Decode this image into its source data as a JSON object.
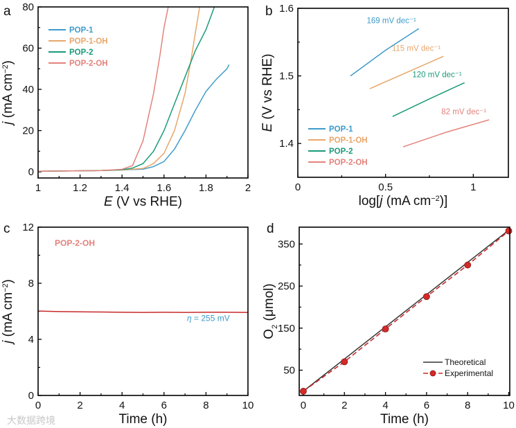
{
  "watermark": "大数据跨境",
  "chart_data": [
    {
      "panel": "a",
      "type": "line",
      "xlabel_italic": "E",
      "xlabel_rest": " (V vs RHE)",
      "ylabel_italic": "j",
      "ylabel_rest": " (mA cm",
      "ylabel_sup": "−2",
      "ylabel_end": ")",
      "xlim": [
        1,
        2
      ],
      "ylim": [
        -3,
        80
      ],
      "xticks": [
        1,
        1.2,
        1.4,
        1.6,
        1.8,
        2
      ],
      "xtick_labels": [
        "1",
        "1.2",
        "1.4",
        "1.6",
        "1.8",
        "2"
      ],
      "yticks": [
        0,
        20,
        40,
        60,
        80
      ],
      "ytick_labels": [
        "0",
        "20",
        "40",
        "60",
        "80"
      ],
      "legend": "top-left",
      "series": [
        {
          "name": "POP-1",
          "color": "#3d9bc9",
          "x": [
            1.0,
            1.3,
            1.4,
            1.5,
            1.55,
            1.6,
            1.65,
            1.7,
            1.75,
            1.8,
            1.85,
            1.9,
            1.91
          ],
          "y": [
            0.3,
            0.6,
            0.9,
            1.3,
            2.5,
            5,
            11,
            20,
            30,
            39,
            45,
            50,
            52
          ]
        },
        {
          "name": "POP-1-OH",
          "color": "#e8a66a",
          "x": [
            1.0,
            1.3,
            1.4,
            1.5,
            1.55,
            1.6,
            1.65,
            1.7,
            1.73,
            1.75,
            1.77
          ],
          "y": [
            0.3,
            0.6,
            0.9,
            1.6,
            4,
            9,
            20,
            38,
            55,
            68,
            80
          ]
        },
        {
          "name": "POP-2",
          "color": "#1a9a7a",
          "x": [
            1.0,
            1.3,
            1.4,
            1.45,
            1.5,
            1.55,
            1.6,
            1.65,
            1.7,
            1.75,
            1.8,
            1.84
          ],
          "y": [
            0.3,
            0.6,
            1,
            1.8,
            4,
            10,
            20,
            33,
            46,
            59,
            69,
            80
          ]
        },
        {
          "name": "POP-2-OH",
          "color": "#e3827b",
          "x": [
            1.0,
            1.3,
            1.4,
            1.45,
            1.5,
            1.55,
            1.58,
            1.6,
            1.62
          ],
          "y": [
            0.3,
            0.6,
            1.2,
            3,
            15,
            38,
            56,
            70,
            80
          ]
        }
      ]
    },
    {
      "panel": "b",
      "type": "line",
      "xlabel_pre": "log[",
      "xlabel_italic": "j",
      "xlabel_rest": " (mA cm",
      "xlabel_sup": "−2",
      "xlabel_end": ")]",
      "ylabel_italic": "E",
      "ylabel_rest": " (V vs RHE)",
      "xlim": [
        0,
        1.2
      ],
      "ylim": [
        1.35,
        1.6
      ],
      "xticks": [
        0,
        0.5,
        1
      ],
      "xtick_labels": [
        "0",
        "0.5",
        "1"
      ],
      "yticks": [
        1.4,
        1.5,
        1.6
      ],
      "ytick_labels": [
        "1.4",
        "1.5",
        "1.6"
      ],
      "legend": "bottom-left",
      "series": [
        {
          "name": "POP-1",
          "color": "#3d9bc9",
          "x": [
            0.3,
            0.5,
            0.69
          ],
          "y": [
            1.5,
            1.538,
            1.57
          ],
          "annotation": "169 mV dec⁻¹"
        },
        {
          "name": "POP-1-OH",
          "color": "#e8a66a",
          "x": [
            0.41,
            0.62,
            0.83
          ],
          "y": [
            1.481,
            1.505,
            1.529
          ],
          "annotation": "115 mV dec⁻¹"
        },
        {
          "name": "POP-2",
          "color": "#1a9a7a",
          "x": [
            0.54,
            0.75,
            0.95
          ],
          "y": [
            1.44,
            1.466,
            1.49
          ],
          "annotation": "120 mV dec⁻¹"
        },
        {
          "name": "POP-2-OH",
          "color": "#e3827b",
          "x": [
            0.6,
            0.85,
            1.09
          ],
          "y": [
            1.395,
            1.417,
            1.435
          ],
          "annotation": "82 mV dec⁻¹"
        }
      ]
    },
    {
      "panel": "c",
      "type": "line",
      "xlabel": "Time (h)",
      "ylabel_italic": "j",
      "ylabel_rest": " (mA cm",
      "ylabel_sup": "−2",
      "ylabel_end": ")",
      "xlim": [
        0,
        10
      ],
      "ylim": [
        0,
        12
      ],
      "xticks": [
        0,
        2,
        4,
        6,
        8,
        10
      ],
      "xtick_labels": [
        "0",
        "2",
        "4",
        "6",
        "8",
        "10"
      ],
      "yticks": [
        0,
        4,
        8,
        12
      ],
      "ytick_labels": [
        "0",
        "4",
        "8",
        "12"
      ],
      "sample_label": "POP-2-OH",
      "sample_color": "#e3827b",
      "overpotential_symbol": "η",
      "overpotential_text": " = 255 mV",
      "overpotential_color": "#3d9bc9",
      "series": [
        {
          "name": "POP-2-OH",
          "color": "#c8282a",
          "x": [
            0,
            1,
            2,
            3,
            4,
            5,
            6,
            7,
            8,
            9,
            10
          ],
          "y": [
            6.02,
            5.98,
            5.96,
            5.95,
            5.93,
            5.92,
            5.93,
            5.92,
            5.93,
            5.93,
            5.92
          ]
        }
      ]
    },
    {
      "panel": "d",
      "type": "line",
      "xlabel": "Time (h)",
      "ylabel_main": "O",
      "ylabel_sub": "2",
      "ylabel_rest": " (μmol)",
      "xlim": [
        -0.2,
        10.05
      ],
      "ylim": [
        -10,
        390
      ],
      "xticks": [
        0,
        2,
        4,
        6,
        8,
        10
      ],
      "xtick_labels": [
        "0",
        "2",
        "4",
        "6",
        "8",
        "10"
      ],
      "yticks": [
        50,
        150,
        250,
        350
      ],
      "ytick_labels": [
        "50",
        "150",
        "250",
        "350"
      ],
      "legend": "bottom-right",
      "series": [
        {
          "name": "Theoretical",
          "color": "#333333",
          "style": "solid",
          "x": [
            0,
            10
          ],
          "y": [
            0,
            383
          ]
        },
        {
          "name": "Experimental",
          "color": "#c8282a",
          "style": "dashed-markers",
          "x": [
            0,
            2,
            4,
            6,
            8,
            10
          ],
          "y": [
            0,
            70,
            148,
            225,
            300,
            381
          ]
        }
      ]
    }
  ]
}
